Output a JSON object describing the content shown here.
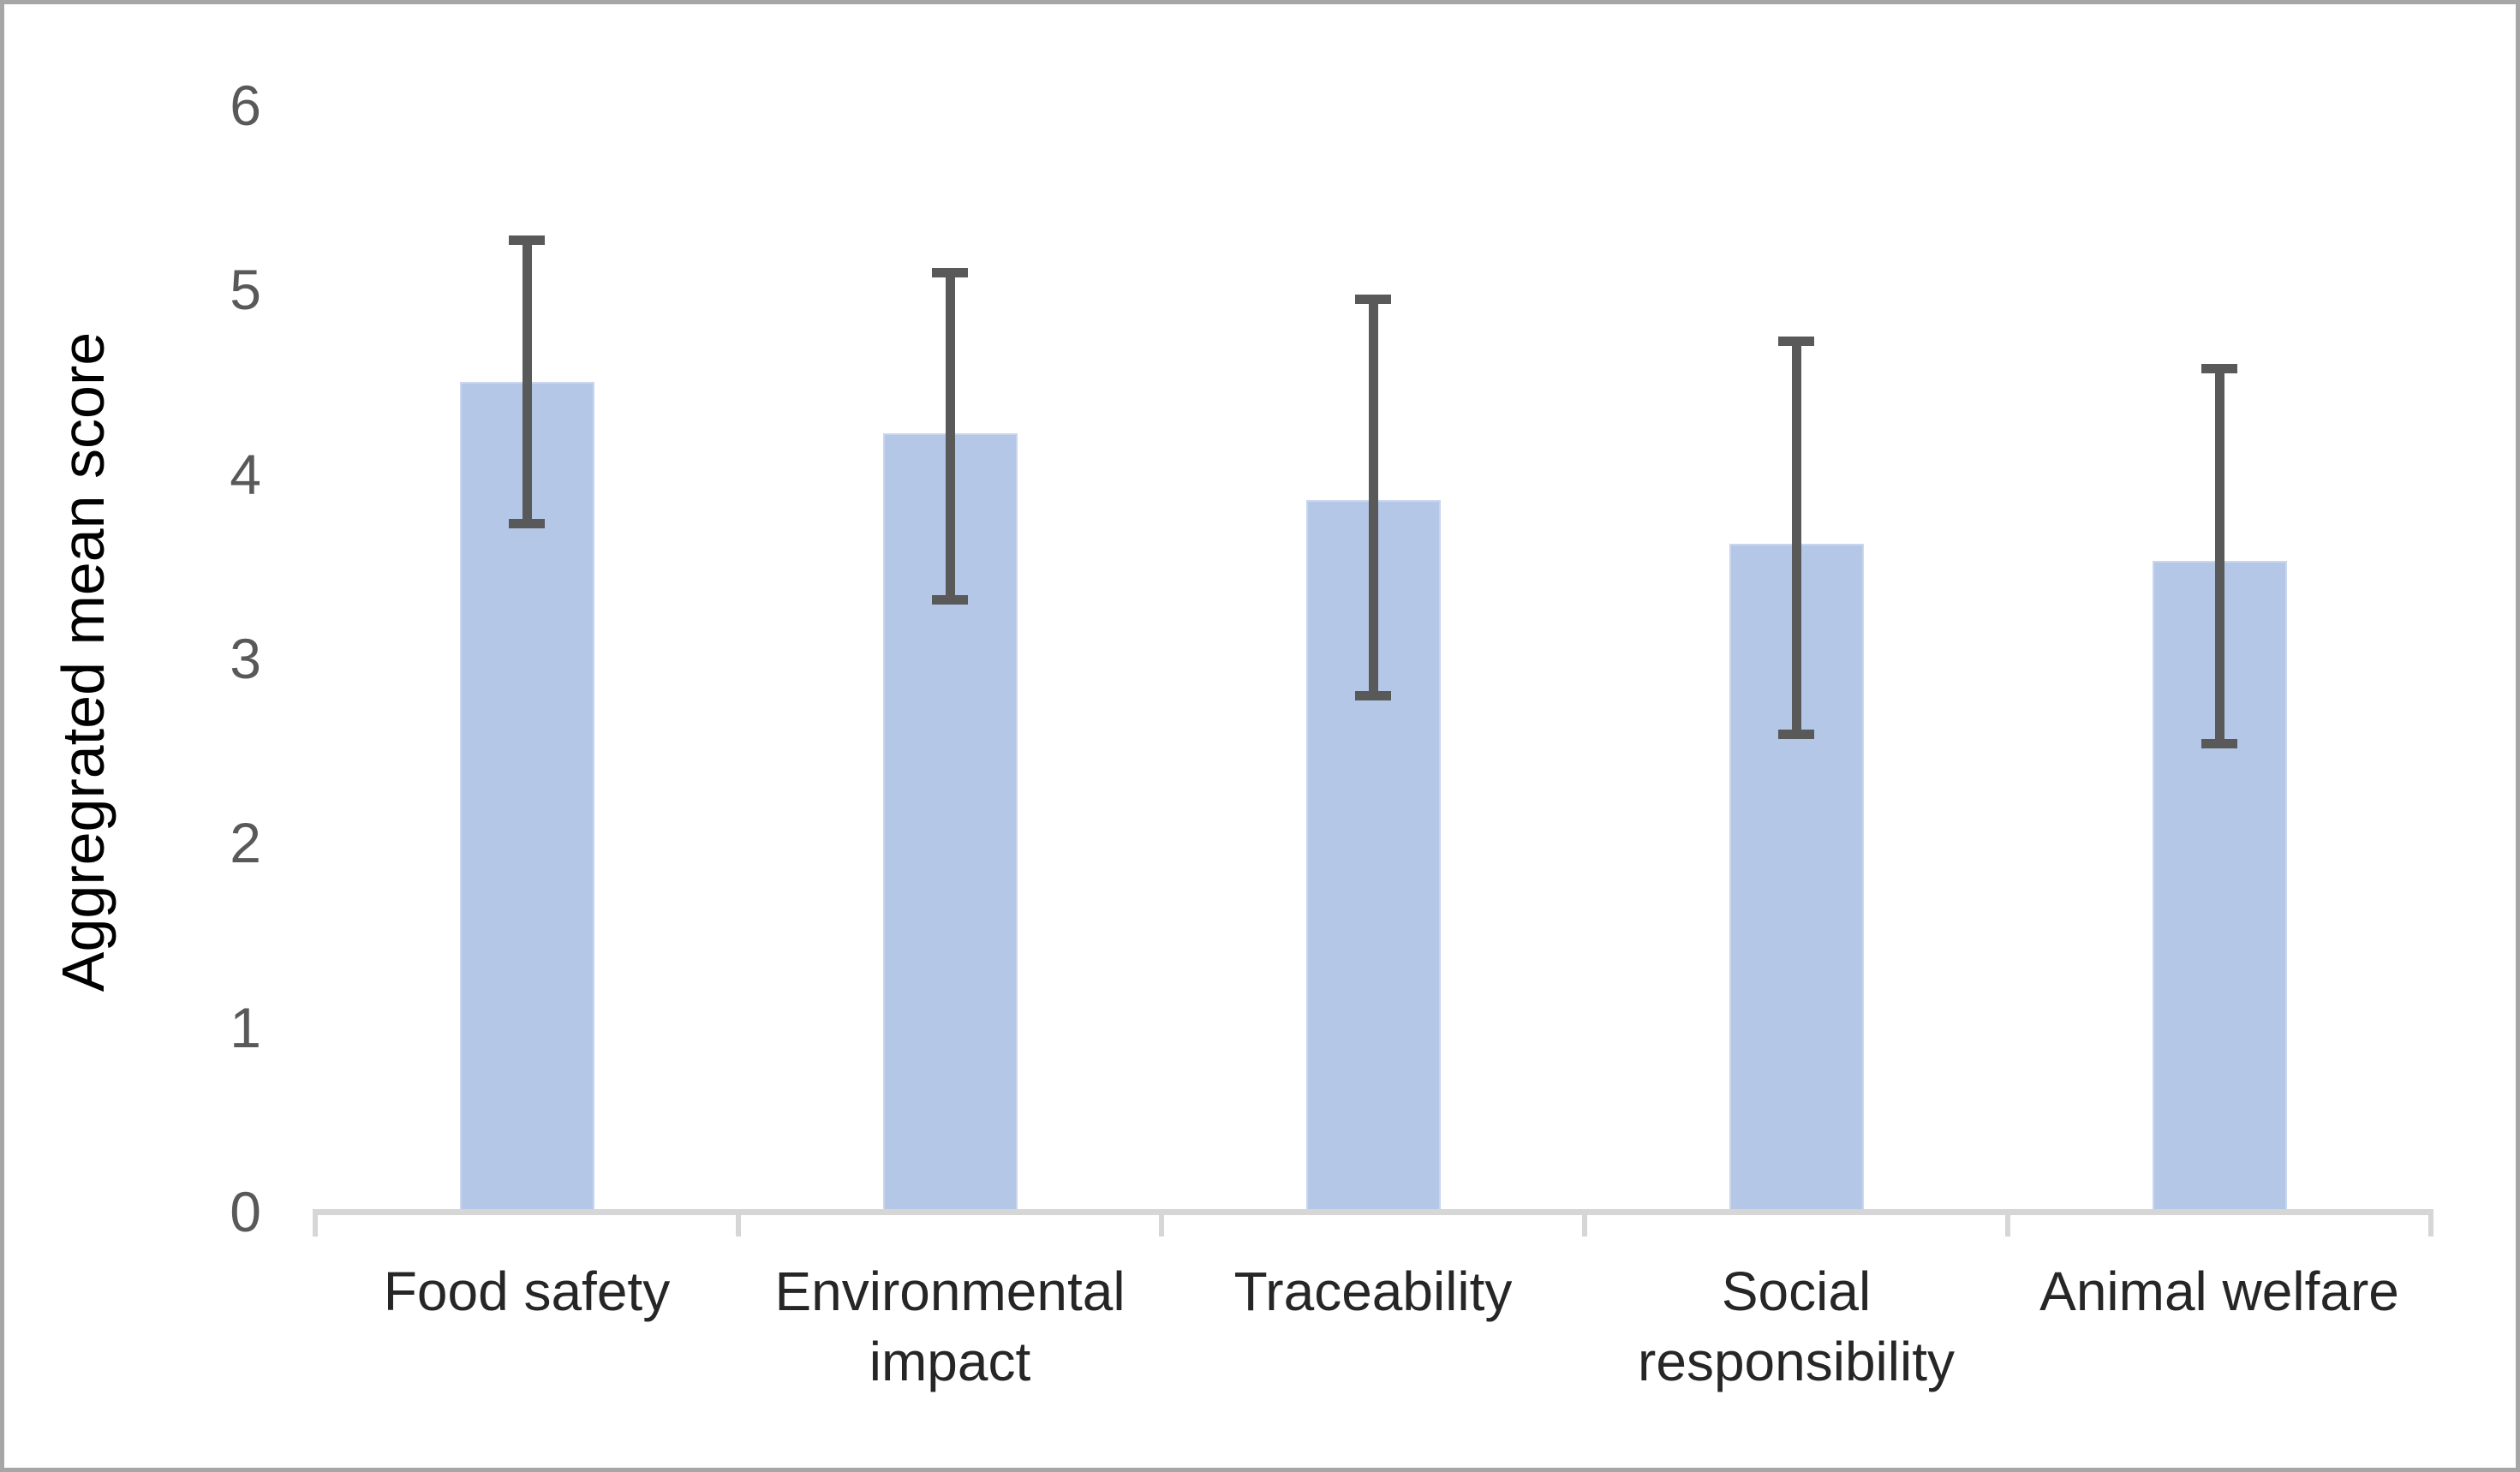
{
  "chart_data": {
    "type": "bar",
    "title": "",
    "categories": [
      "Food safety",
      "Environmental impact",
      "Traceability",
      "Social responsibility",
      "Animal welfare"
    ],
    "values": [
      4.5,
      4.22,
      3.86,
      3.62,
      3.53
    ],
    "error_low": [
      3.73,
      3.32,
      2.8,
      2.59,
      2.54
    ],
    "error_high": [
      5.27,
      5.09,
      4.95,
      4.72,
      4.57
    ],
    "ylabel": "Aggregrated mean score",
    "xlabel": "",
    "ylim": [
      0,
      6
    ],
    "yticks": [
      0,
      1,
      2,
      3,
      4,
      5,
      6
    ],
    "grid": false,
    "legend_position": "none",
    "bar_color": "#b4c7e7",
    "bar_border_color": "#c9d6ee",
    "error_bar_color": "#595959",
    "axis_line_color": "#d6d6d6",
    "tick_label_color": "#595959",
    "category_label_color": "#262626",
    "y_title_color": "#000000",
    "frame_border_color": "#a6a6a6",
    "background_color": "#ffffff"
  }
}
